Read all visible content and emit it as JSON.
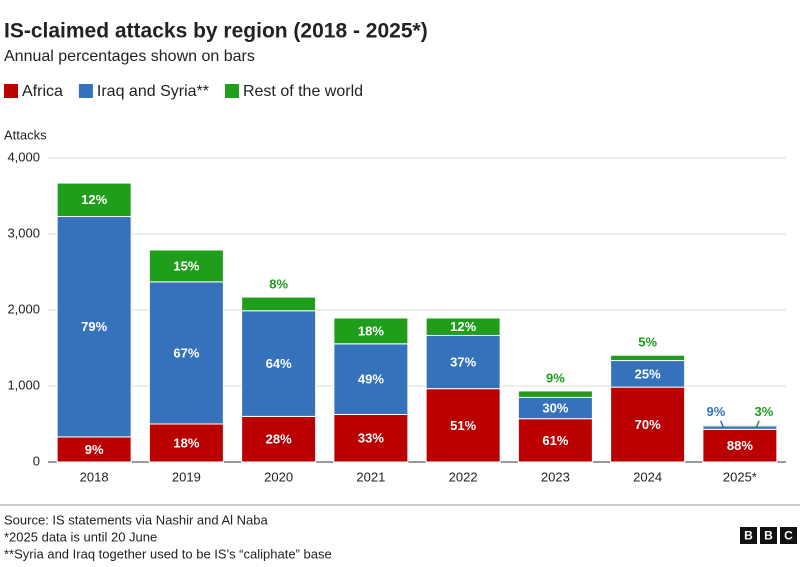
{
  "chart_data": {
    "type": "stacked_bar",
    "title": "IS-claimed attacks by region (2018 - 2025*)",
    "subtitle": "Annual percentages shown on bars",
    "y_label": "Attacks",
    "categories": [
      "2018",
      "2019",
      "2020",
      "2021",
      "2022",
      "2023",
      "2024",
      "2025*"
    ],
    "series": [
      {
        "name": "Africa",
        "color": "#bb0000",
        "values": [
          330,
          500,
          600,
          625,
          965,
          570,
          985,
          430
        ],
        "percent_labels": [
          "9%",
          "18%",
          "28%",
          "33%",
          "51%",
          "61%",
          "70%",
          "88%"
        ]
      },
      {
        "name": "Iraq and Syria**",
        "color": "#3572bb",
        "values": [
          2900,
          1870,
          1390,
          930,
          700,
          280,
          350,
          45
        ],
        "percent_labels": [
          "79%",
          "67%",
          "64%",
          "49%",
          "37%",
          "30%",
          "25%",
          "9%"
        ]
      },
      {
        "name": "Rest of the world",
        "color": "#1f9e1b",
        "values": [
          440,
          420,
          180,
          340,
          230,
          85,
          70,
          15
        ],
        "percent_labels": [
          "12%",
          "15%",
          "8%",
          "18%",
          "12%",
          "9%",
          "5%",
          "3%"
        ]
      }
    ],
    "ylim": [
      0,
      4000
    ],
    "yticks": [
      0,
      {
        "value": 1000,
        "label": "1,000"
      },
      {
        "value": 2000,
        "label": "2,000"
      },
      {
        "value": 3000,
        "label": "3,000"
      },
      {
        "value": 4000,
        "label": "4,000"
      }
    ],
    "grid": true,
    "source": "Source: IS statements via Nashir and Al Naba",
    "notes": [
      "*2025 data is until 20 June",
      "**Syria and Iraq together used to be IS's “caliphate” base"
    ],
    "logo": [
      "B",
      "B",
      "C"
    ]
  }
}
